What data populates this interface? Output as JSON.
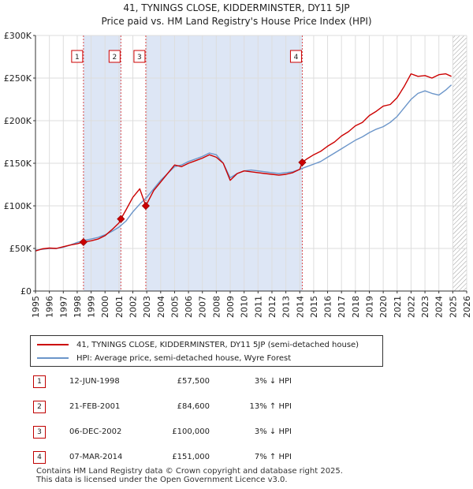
{
  "title": "41, TYNINGS CLOSE, KIDDERMINSTER, DY11 5JP",
  "subtitle": "Price paid vs. HM Land Registry's House Price Index (HPI)",
  "colors": {
    "property": "#cc0000",
    "hpi": "#6b95c9",
    "shade": "#dde6f5",
    "grid": "#dddddd"
  },
  "chart_data": {
    "type": "line",
    "title": "41, TYNINGS CLOSE, KIDDERMINSTER, DY11 5JP",
    "xlabel": "",
    "ylabel": "",
    "xlim": [
      1995,
      2026
    ],
    "ylim": [
      0,
      300000
    ],
    "x_ticks": [
      1995,
      1996,
      1997,
      1998,
      1999,
      2000,
      2001,
      2002,
      2003,
      2004,
      2005,
      2006,
      2007,
      2008,
      2009,
      2010,
      2011,
      2012,
      2013,
      2014,
      2015,
      2016,
      2017,
      2018,
      2019,
      2020,
      2021,
      2022,
      2023,
      2024,
      2025,
      2026
    ],
    "y_ticks": [
      {
        "value": 0,
        "label": "£0"
      },
      {
        "value": 50000,
        "label": "£50K"
      },
      {
        "value": 100000,
        "label": "£100K"
      },
      {
        "value": 150000,
        "label": "£150K"
      },
      {
        "value": 200000,
        "label": "£200K"
      },
      {
        "value": 250000,
        "label": "£250K"
      },
      {
        "value": 300000,
        "label": "£300K"
      }
    ],
    "shaded_ranges": [
      [
        1998.45,
        2001.14
      ],
      [
        2002.93,
        2014.18
      ]
    ],
    "future_hatch_from": 2025.0,
    "series": [
      {
        "name": "41, TYNINGS CLOSE, KIDDERMINSTER, DY11 5JP (semi-detached house)",
        "color": "#cc0000",
        "x": [
          1995,
          1995.5,
          1996,
          1996.5,
          1997,
          1997.5,
          1998,
          1998.45,
          1999,
          1999.5,
          2000,
          2000.5,
          2001,
          2001.14,
          2001.5,
          2002,
          2002.5,
          2002.93,
          2003.5,
          2004,
          2004.5,
          2005,
          2005.5,
          2006,
          2006.5,
          2007,
          2007.5,
          2008,
          2008.5,
          2009,
          2009.5,
          2010,
          2010.5,
          2011,
          2011.5,
          2012,
          2012.5,
          2013,
          2013.5,
          2014,
          2014.18,
          2014.5,
          2015,
          2015.5,
          2016,
          2016.5,
          2017,
          2017.5,
          2018,
          2018.5,
          2019,
          2019.5,
          2020,
          2020.5,
          2021,
          2021.5,
          2022,
          2022.5,
          2023,
          2023.5,
          2024,
          2024.5,
          2024.9
        ],
        "values": [
          47000,
          49500,
          50500,
          50000,
          52000,
          54000,
          55500,
          57500,
          59000,
          61000,
          65000,
          72000,
          80000,
          84600,
          95000,
          110000,
          120000,
          100000,
          118000,
          128000,
          138000,
          148000,
          146000,
          150000,
          153000,
          156000,
          160000,
          157000,
          150000,
          130000,
          138000,
          141000,
          140000,
          139000,
          138000,
          137000,
          136000,
          137000,
          139000,
          143000,
          151000,
          155000,
          160000,
          164000,
          170000,
          175000,
          182000,
          187000,
          194000,
          198000,
          206000,
          211000,
          217000,
          219000,
          227000,
          240000,
          255000,
          252000,
          253000,
          250000,
          254000,
          255000,
          252000
        ]
      },
      {
        "name": "HPI: Average price, semi-detached house, Wyre Forest",
        "color": "#6b95c9",
        "x": [
          1995,
          1995.5,
          1996,
          1996.5,
          1997,
          1997.5,
          1998,
          1998.5,
          1999,
          1999.5,
          2000,
          2000.5,
          2001,
          2001.5,
          2002,
          2002.5,
          2003,
          2003.5,
          2004,
          2004.5,
          2005,
          2005.5,
          2006,
          2006.5,
          2007,
          2007.5,
          2008,
          2008.5,
          2009,
          2009.5,
          2010,
          2010.5,
          2011,
          2011.5,
          2012,
          2012.5,
          2013,
          2013.5,
          2014,
          2014.5,
          2015,
          2015.5,
          2016,
          2016.5,
          2017,
          2017.5,
          2018,
          2018.5,
          2019,
          2019.5,
          2020,
          2020.5,
          2021,
          2021.5,
          2022,
          2022.5,
          2023,
          2023.5,
          2024,
          2024.5,
          2024.9
        ],
        "values": [
          48000,
          49000,
          50000,
          50000,
          51500,
          54000,
          57000,
          59500,
          61000,
          63000,
          66000,
          70000,
          75000,
          82000,
          93000,
          102000,
          110000,
          120000,
          130000,
          138000,
          146000,
          148000,
          152000,
          155000,
          158000,
          162000,
          160000,
          150000,
          133000,
          138000,
          141000,
          142000,
          141000,
          140000,
          139000,
          138000,
          139000,
          140000,
          143000,
          146000,
          149000,
          152000,
          157000,
          162000,
          167000,
          172000,
          177000,
          181000,
          186000,
          190000,
          193000,
          198000,
          205000,
          215000,
          225000,
          232000,
          235000,
          232000,
          230000,
          236000,
          242000
        ]
      }
    ],
    "sales": [
      {
        "label": "1",
        "x": 1998.45,
        "value": 57500
      },
      {
        "label": "2",
        "x": 2001.14,
        "value": 84600
      },
      {
        "label": "3",
        "x": 2002.93,
        "value": 100000
      },
      {
        "label": "4",
        "x": 2014.18,
        "value": 151000
      }
    ]
  },
  "legend": {
    "property": "41, TYNINGS CLOSE, KIDDERMINSTER, DY11 5JP (semi-detached house)",
    "hpi": "HPI: Average price, semi-detached house, Wyre Forest"
  },
  "transactions": [
    {
      "num": "1",
      "date": "12-JUN-1998",
      "price": "£57,500",
      "hpi": "3% ↓ HPI"
    },
    {
      "num": "2",
      "date": "21-FEB-2001",
      "price": "£84,600",
      "hpi": "13% ↑ HPI"
    },
    {
      "num": "3",
      "date": "06-DEC-2002",
      "price": "£100,000",
      "hpi": "3% ↓ HPI"
    },
    {
      "num": "4",
      "date": "07-MAR-2014",
      "price": "£151,000",
      "hpi": "7% ↑ HPI"
    }
  ],
  "footer": {
    "line1": "Contains HM Land Registry data © Crown copyright and database right 2025.",
    "line2": "This data is licensed under the Open Government Licence v3.0."
  }
}
